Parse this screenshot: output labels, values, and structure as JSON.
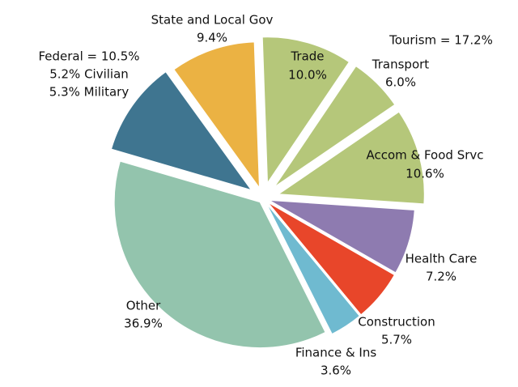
{
  "chart_data": {
    "type": "pie",
    "categories": [
      "Trade",
      "Transport",
      "Accom & Food Srvc",
      "Health Care",
      "Construction",
      "Finance & Ins",
      "Other",
      "Federal = 10.5%",
      "State and Local Gov"
    ],
    "values": [
      10.0,
      6.0,
      10.6,
      7.2,
      5.7,
      3.6,
      36.9,
      10.5,
      9.4
    ],
    "value_labels": [
      "10.0%",
      "6.0%",
      "10.6%",
      "7.2%",
      "5.7%",
      "3.6%",
      "36.9%",
      null,
      "9.4%"
    ],
    "colors": [
      "#b5c77a",
      "#b5c77a",
      "#b5c77a",
      "#8e7bb0",
      "#e8462a",
      "#6fbad0",
      "#93c4ad",
      "#3f7590",
      "#ebb243"
    ],
    "annotations": [
      "Tourism = 17.2%",
      "5.2% Civilian",
      "5.3% Military"
    ]
  }
}
